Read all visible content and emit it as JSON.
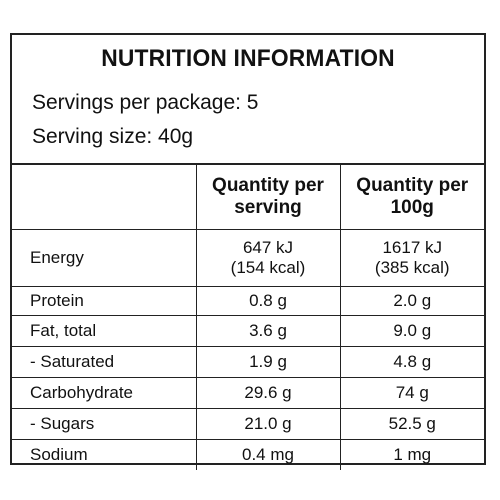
{
  "panel": {
    "title": "NUTRITION INFORMATION",
    "servings_per_package": "Servings per package: 5",
    "serving_size": "Serving size: 40g"
  },
  "table": {
    "headers": {
      "col1": "",
      "col2_line1": "Quantity per",
      "col2_line2": "serving",
      "col3_line1": "Quantity per",
      "col3_line2": "100g"
    },
    "rows": [
      {
        "label": "Energy",
        "per_serving": "647 kJ",
        "per_serving_2": "(154 kcal)",
        "per_100g": "1617 kJ",
        "per_100g_2": "(385 kcal)"
      },
      {
        "label": "Protein",
        "per_serving": "0.8 g",
        "per_100g": "2.0 g"
      },
      {
        "label": "Fat, total",
        "per_serving": "3.6 g",
        "per_100g": "9.0 g"
      },
      {
        "label": "- Saturated",
        "per_serving": "1.9 g",
        "per_100g": "4.8 g"
      },
      {
        "label": "Carbohydrate",
        "per_serving": "29.6 g",
        "per_100g": "74 g"
      },
      {
        "label": "- Sugars",
        "per_serving": "21.0 g",
        "per_100g": "52.5 g"
      },
      {
        "label": "Sodium",
        "per_serving": "0.4 mg",
        "per_100g": "1 mg"
      }
    ]
  }
}
